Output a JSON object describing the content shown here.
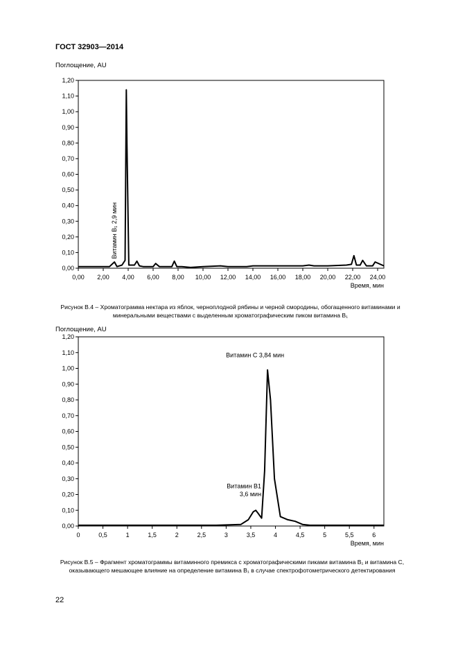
{
  "header": {
    "standard": "ГОСТ 32903—2014"
  },
  "page_number": "22",
  "chart_data": [
    {
      "type": "line",
      "ylabel": "Поглощение, AU",
      "xlabel": "Время, мин",
      "xlim": [
        0,
        24.5
      ],
      "ylim": [
        0,
        1.2
      ],
      "x_ticks": [
        "0,00",
        "2,00",
        "4,00",
        "6,00",
        "8,00",
        "10,00",
        "12,00",
        "14,00",
        "16,00",
        "18,00",
        "20,00",
        "22,00",
        "24,00"
      ],
      "y_ticks": [
        "0,00",
        "0,10",
        "0,20",
        "0,30",
        "0,40",
        "0,50",
        "0,60",
        "0,70",
        "0,80",
        "0,90",
        "1,00",
        "1,10",
        "1,20"
      ],
      "grid": false,
      "annotation": "Витамин В₁ 2,9 мин",
      "series": [
        {
          "x": [
            0,
            2.5,
            2.9,
            3.1,
            3.5,
            3.75,
            3.85,
            3.9,
            4.05,
            4.5,
            4.7,
            4.9,
            5.2,
            6.0,
            6.2,
            6.5,
            7.5,
            7.7,
            7.9,
            8.3,
            9.0,
            10,
            11.4,
            12,
            13.5,
            14,
            16,
            18,
            18.5,
            18.9,
            20,
            21.5,
            21.9,
            22.1,
            22.3,
            22.6,
            22.8,
            23.1,
            23.6,
            23.8,
            24.5
          ],
          "y": [
            0.01,
            0.01,
            0.04,
            0.01,
            0.02,
            0.05,
            1.14,
            0.8,
            0.02,
            0.02,
            0.045,
            0.015,
            0.01,
            0.01,
            0.03,
            0.01,
            0.01,
            0.045,
            0.01,
            0.01,
            0.005,
            0.01,
            0.015,
            0.01,
            0.01,
            0.015,
            0.015,
            0.015,
            0.02,
            0.015,
            0.015,
            0.02,
            0.025,
            0.08,
            0.02,
            0.02,
            0.05,
            0.015,
            0.015,
            0.04,
            0.015
          ]
        }
      ]
    },
    {
      "type": "line",
      "ylabel": "Поглощение, AU",
      "xlabel": "Время, мин",
      "xlim": [
        0,
        6.2
      ],
      "ylim": [
        0,
        1.2
      ],
      "x_ticks": [
        "0",
        "0,5",
        "1",
        "1,5",
        "2",
        "2,5",
        "3",
        "3,5",
        "4",
        "4,5",
        "5",
        "5,5",
        "6"
      ],
      "y_ticks": [
        "0,00",
        "0,10",
        "0,20",
        "0,30",
        "0,40",
        "0,50",
        "0,60",
        "0,70",
        "0,80",
        "0,90",
        "1,00",
        "1,10",
        "1,20"
      ],
      "grid": false,
      "annotations": [
        "Витамин С 3,84 мин",
        "Витамин В1",
        "3,6 мин"
      ],
      "series": [
        {
          "x": [
            0,
            2.8,
            3.3,
            3.45,
            3.55,
            3.6,
            3.65,
            3.72,
            3.78,
            3.84,
            3.9,
            3.98,
            4.1,
            4.25,
            4.4,
            4.55,
            4.7,
            5.0,
            6.2
          ],
          "y": [
            0.005,
            0.005,
            0.01,
            0.04,
            0.09,
            0.1,
            0.08,
            0.05,
            0.35,
            0.99,
            0.8,
            0.3,
            0.06,
            0.04,
            0.03,
            0.01,
            0.005,
            0.005,
            0.005
          ]
        }
      ]
    }
  ],
  "captions": {
    "fig4": "Рисунок В.4 – Хроматограмма нектара из яблок, черноплодной рябины и черной смородины, обогащенного витаминами и минеральными веществами с выделенным хроматографическим пиком витамина В₁",
    "fig5": "Рисунок В.5 – Фрагмент хроматограммы витаминного премикса с хроматографическими пиками витамина В₁ и витамина С, оказывающего мешающее влияние на определение витамина В₁ в случае спектрофотометрического детектирования"
  }
}
